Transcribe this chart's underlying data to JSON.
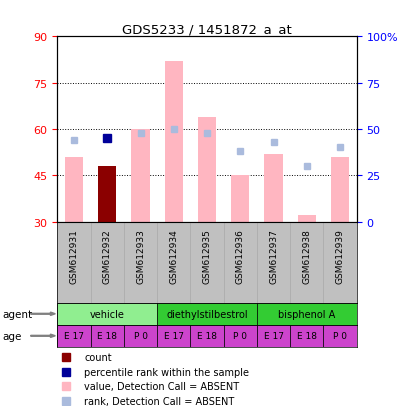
{
  "title": "GDS5233 / 1451872_a_at",
  "samples": [
    "GSM612931",
    "GSM612932",
    "GSM612933",
    "GSM612934",
    "GSM612935",
    "GSM612936",
    "GSM612937",
    "GSM612938",
    "GSM612939"
  ],
  "value_absent": [
    51,
    null,
    60,
    82,
    64,
    45,
    52,
    32,
    51
  ],
  "rank_absent_pct": [
    44,
    null,
    48,
    50,
    48,
    38,
    43,
    30,
    40
  ],
  "count_value": [
    null,
    48,
    null,
    null,
    null,
    null,
    null,
    null,
    null
  ],
  "rank_present_pct": [
    null,
    45,
    null,
    null,
    null,
    null,
    null,
    null,
    null
  ],
  "ylim_left": [
    30,
    90
  ],
  "ylim_right": [
    0,
    100
  ],
  "yticks_left": [
    30,
    45,
    60,
    75,
    90
  ],
  "yticks_right": [
    0,
    25,
    50,
    75,
    100
  ],
  "yticklabels_right": [
    "0",
    "25",
    "50",
    "75",
    "100%"
  ],
  "agent_colors": [
    "#90EE90",
    "#33CC33",
    "#33CC33"
  ],
  "agent_labels": [
    "vehicle",
    "diethylstilbestrol",
    "bisphenol A"
  ],
  "agent_ranges": [
    [
      0,
      3
    ],
    [
      3,
      6
    ],
    [
      6,
      9
    ]
  ],
  "age_labels": [
    "E 17",
    "E 18",
    "P 0",
    "E 17",
    "E 18",
    "P 0",
    "E 17",
    "E 18",
    "P 0"
  ],
  "age_color": "#CC44CC",
  "bar_bottom": 30,
  "absent_bar_color": "#FFB6C1",
  "absent_rank_color": "#AABBDD",
  "count_color": "#8B0000",
  "present_rank_color": "#000099",
  "label_area_color": "#C0C0C0"
}
